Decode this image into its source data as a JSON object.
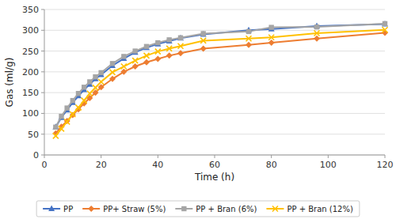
{
  "chart_data": {
    "type": "line",
    "xlabel": "Time (h)",
    "ylabel": "Gas (ml/g)",
    "xlim": [
      0,
      120
    ],
    "ylim": [
      0,
      350
    ],
    "xticks": [
      0,
      20,
      40,
      60,
      80,
      100,
      120
    ],
    "yticks": [
      0,
      50,
      100,
      150,
      200,
      250,
      300,
      350
    ],
    "grid": true,
    "legend": "bottom",
    "x": [
      4,
      6,
      8,
      10,
      12,
      14,
      16,
      18,
      20,
      24,
      28,
      32,
      36,
      40,
      44,
      48,
      56,
      72,
      80,
      96,
      120
    ],
    "series": [
      {
        "name": "PP",
        "color": "#4472C4",
        "marker": "triangle",
        "values": [
          67,
          90,
          108,
          126,
          142,
          157,
          170,
          183,
          193,
          215,
          232,
          247,
          258,
          267,
          274,
          281,
          290,
          300,
          303,
          310,
          315
        ]
      },
      {
        "name": "PP+ Straw (5%)",
        "color": "#ED7D31",
        "marker": "diamond",
        "values": [
          52,
          68,
          82,
          96,
          110,
          124,
          137,
          150,
          163,
          183,
          200,
          213,
          223,
          231,
          239,
          245,
          256,
          265,
          270,
          280,
          294
        ]
      },
      {
        "name": "PP + Bran (6%)",
        "color": "#A5A5A5",
        "marker": "square",
        "values": [
          67,
          93,
          113,
          131,
          148,
          163,
          176,
          188,
          198,
          220,
          237,
          250,
          261,
          270,
          277,
          282,
          292,
          297,
          307,
          308,
          316
        ]
      },
      {
        "name": "PP + Bran (12%)",
        "color": "#FFC000",
        "marker": "x",
        "values": [
          46,
          63,
          80,
          98,
          114,
          131,
          148,
          162,
          176,
          199,
          213,
          227,
          239,
          249,
          256,
          262,
          275,
          280,
          283,
          293,
          301
        ]
      }
    ]
  }
}
